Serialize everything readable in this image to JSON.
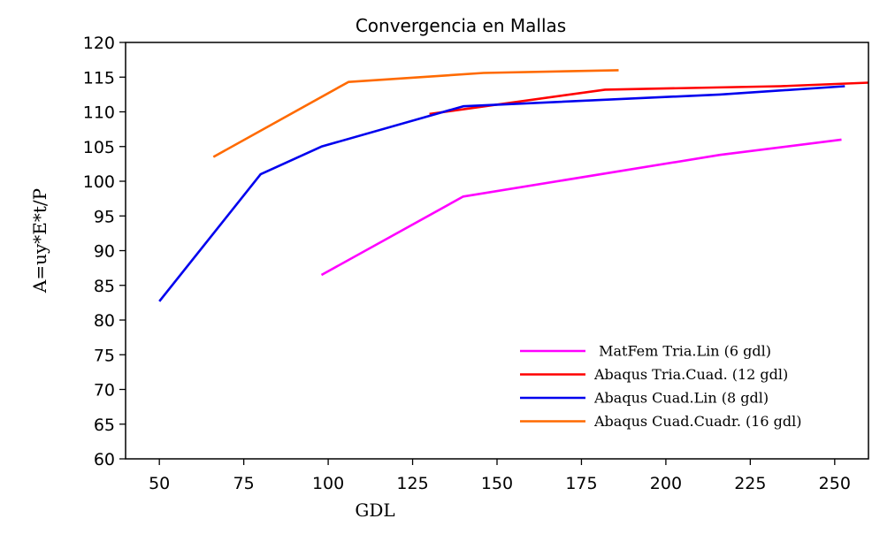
{
  "chart_data": {
    "type": "line",
    "title": "Convergencia en Mallas",
    "xlabel": "GDL",
    "ylabel": "A=uy*E*t/P",
    "xlim": [
      40,
      260
    ],
    "ylim": [
      60,
      120
    ],
    "xticks": [
      50,
      75,
      100,
      125,
      150,
      175,
      200,
      225,
      250
    ],
    "yticks": [
      60,
      65,
      70,
      75,
      80,
      85,
      90,
      95,
      100,
      105,
      110,
      115,
      120
    ],
    "grid": false,
    "legend_position": "lower-right",
    "series": [
      {
        "name": " MatFem Tria.Lin (6 gdl)",
        "color": "#ff00ff",
        "points": [
          [
            98,
            86.5
          ],
          [
            140,
            97.8
          ],
          [
            216,
            103.8
          ],
          [
            252,
            106.0
          ]
        ]
      },
      {
        "name": "Abaqus Tria.Cuad. (12 gdl)",
        "color": "#ff0000",
        "points": [
          [
            130,
            109.7
          ],
          [
            182,
            113.2
          ],
          [
            234,
            113.7
          ],
          [
            260,
            114.2
          ]
        ]
      },
      {
        "name": "Abaqus Cuad.Lin (8 gdl)",
        "color": "#0000ee",
        "points": [
          [
            50,
            82.7
          ],
          [
            80,
            101.0
          ],
          [
            98,
            105.0
          ],
          [
            140,
            110.8
          ],
          [
            216,
            112.5
          ],
          [
            253,
            113.7
          ]
        ]
      },
      {
        "name": "Abaqus Cuad.Cuadr. (16 gdl)",
        "color": "#ff6a00",
        "points": [
          [
            66,
            103.5
          ],
          [
            106,
            114.3
          ],
          [
            146,
            115.6
          ],
          [
            186,
            116.0
          ]
        ]
      }
    ]
  }
}
